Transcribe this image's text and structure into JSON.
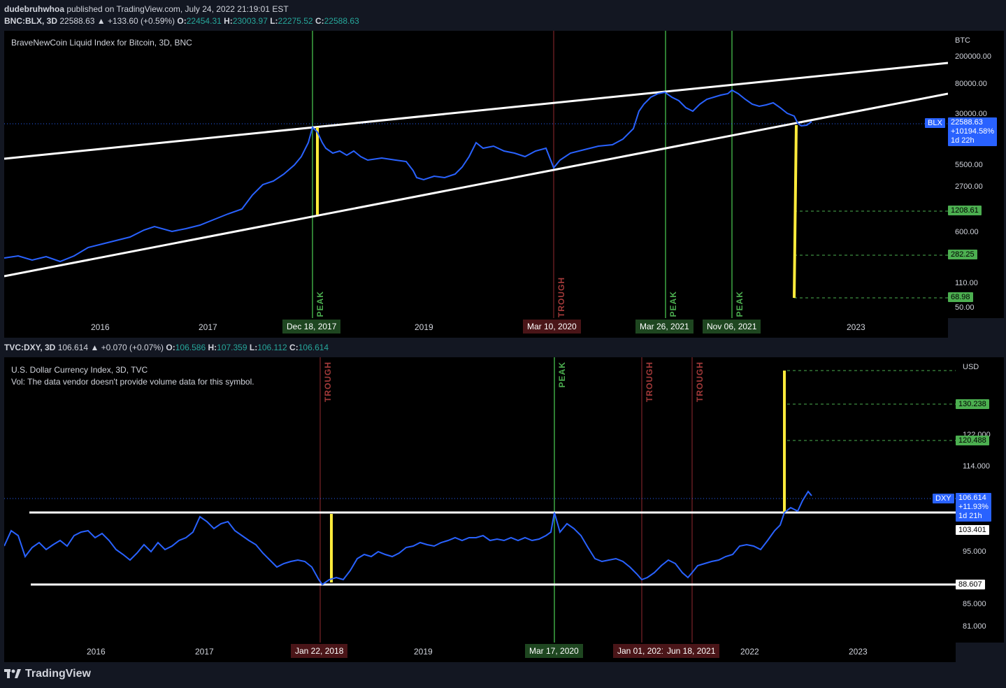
{
  "publish_line": {
    "user": "dudebruhwhoa",
    "rest": " published on TradingView.com, July 24, 2022 21:19:01 EST"
  },
  "top": {
    "symbol": "BNC:BLX, 3D",
    "last": "22588.63",
    "change": "▲ +133.60 (+0.59%)",
    "o": "22454.31",
    "h": "23003.97",
    "l": "22275.52",
    "c": "22588.63",
    "title": "BraveNewCoin Liquid Index for Bitcoin, 3D, BNC",
    "currency": "BTC",
    "y_labels": [
      "200000.00",
      "80000.00",
      "30000.00",
      "5500.00",
      "2700.00",
      "600.00",
      "110.00",
      "50.00"
    ],
    "price_tag": {
      "name": "BLX",
      "price": "22588.63",
      "pct": "+10194.58%",
      "time": "1d 22h"
    },
    "level_tags": [
      "1208.61",
      "282.25",
      "68.98"
    ],
    "x_labels": [
      "2016",
      "2017",
      "2019",
      "2023"
    ],
    "date_tags": [
      "Dec 18, 2017",
      "Mar 10, 2020",
      "Mar 26, 2021",
      "Nov 06, 2021"
    ],
    "markers": [
      "PEAK",
      "TROUGH",
      "PEAK",
      "PEAK"
    ]
  },
  "bottom": {
    "symbol": "TVC:DXY, 3D",
    "last": "106.614",
    "change": "▲ +0.070 (+0.07%)",
    "o": "106.586",
    "h": "107.359",
    "l": "106.112",
    "c": "106.614",
    "title": "U.S. Dollar Currency Index, 3D, TVC",
    "vol_note": "Vol: The data vendor doesn't provide volume data for this symbol.",
    "currency": "USD",
    "y_labels": [
      "122.000",
      "114.000",
      "95.000",
      "85.000",
      "81.000"
    ],
    "price_tag": {
      "name": "DXY",
      "price": "106.614",
      "pct": "+11.93%",
      "time": "1d 21h"
    },
    "level_tags": [
      "130.238",
      "120.488"
    ],
    "white_tags": [
      "103.401",
      "88.607"
    ],
    "x_labels": [
      "2016",
      "2017",
      "2019",
      "2022",
      "2023"
    ],
    "date_tags": [
      "Jan 22, 2018",
      "Mar 17, 2020",
      "Jan 01, 2021",
      "Jun 18, 2021"
    ],
    "markers": [
      "TROUGH",
      "PEAK",
      "TROUGH",
      "TROUGH"
    ]
  },
  "footer": {
    "brand": "TradingView"
  },
  "colors": {
    "line": "#2962ff",
    "peak": "#2e7d32",
    "trough": "#7f1f24",
    "yellow": "#ffeb3b",
    "level": "#4caf50"
  }
}
